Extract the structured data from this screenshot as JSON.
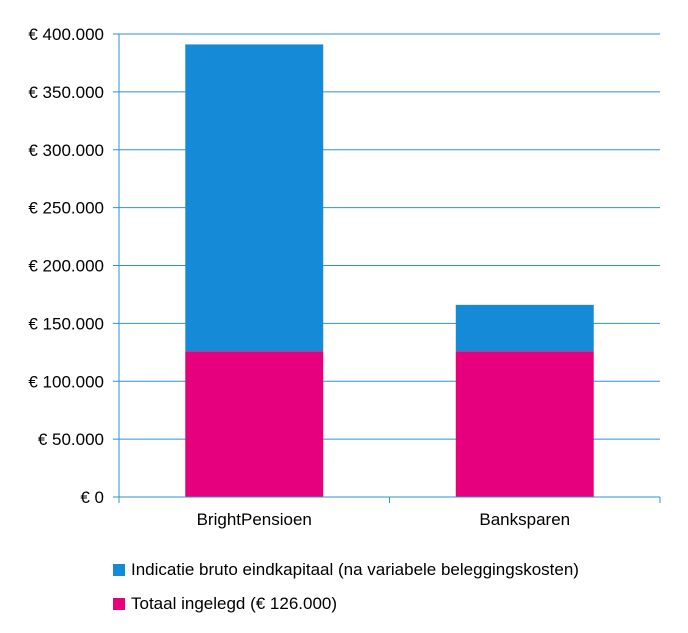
{
  "chart_data": {
    "type": "bar",
    "stacked": true,
    "categories": [
      "BrightPensioen",
      "Banksparen"
    ],
    "series": [
      {
        "name": "Totaal ingelegd (€ 126.000)",
        "values": [
          126000,
          126000
        ],
        "color": "#e6007e"
      },
      {
        "name": "Indicatie bruto eindkapitaal (na variabele beleggingskosten)",
        "values": [
          265000,
          40000
        ],
        "color": "#158bd7"
      }
    ],
    "ylim": [
      0,
      400000
    ],
    "yticks": [
      "€ 0",
      "€ 50.000",
      "€ 100.000",
      "€ 150.000",
      "€ 200.000",
      "€ 250.000",
      "€ 300.000",
      "€ 350.000",
      "€ 400.000"
    ],
    "ytick_values": [
      0,
      50000,
      100000,
      150000,
      200000,
      250000,
      300000,
      350000,
      400000
    ],
    "grid": true,
    "legend_position": "bottom"
  },
  "legend": {
    "items": [
      {
        "label": "Indicatie bruto eindkapitaal (na variabele beleggingskosten)",
        "color": "#158bd7"
      },
      {
        "label": "Totaal ingelegd (€ 126.000)",
        "color": "#e6007e"
      }
    ]
  },
  "colors": {
    "grid": "#2f93cf",
    "axis": "#2f93cf"
  }
}
